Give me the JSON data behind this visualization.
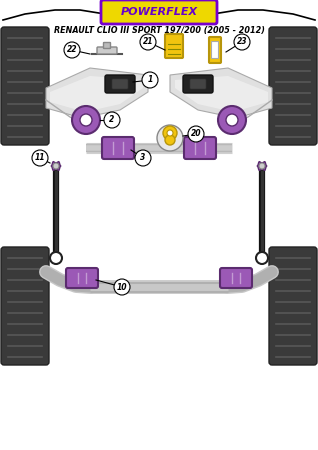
{
  "title": "RENAULT CLIO III SPORT 197/200 (2005 - 2012)",
  "powerflex_text": "POWERFLEX",
  "background_color": "#ffffff",
  "border_color": "#000000",
  "purple_color": "#9b59b6",
  "purple_dark": "#5b2c6f",
  "purple_light": "#c39bd3",
  "yellow_color": "#f1c40f",
  "yellow_dark": "#b7950b",
  "gray_arm": "#d8d8d8",
  "gray_bar": "#c8c8c8",
  "gray_dark": "#888888",
  "tire_color": "#3a3a3a",
  "tire_tread": "#555555",
  "black": "#111111",
  "fig_width": 3.18,
  "fig_height": 4.5,
  "dpi": 100
}
